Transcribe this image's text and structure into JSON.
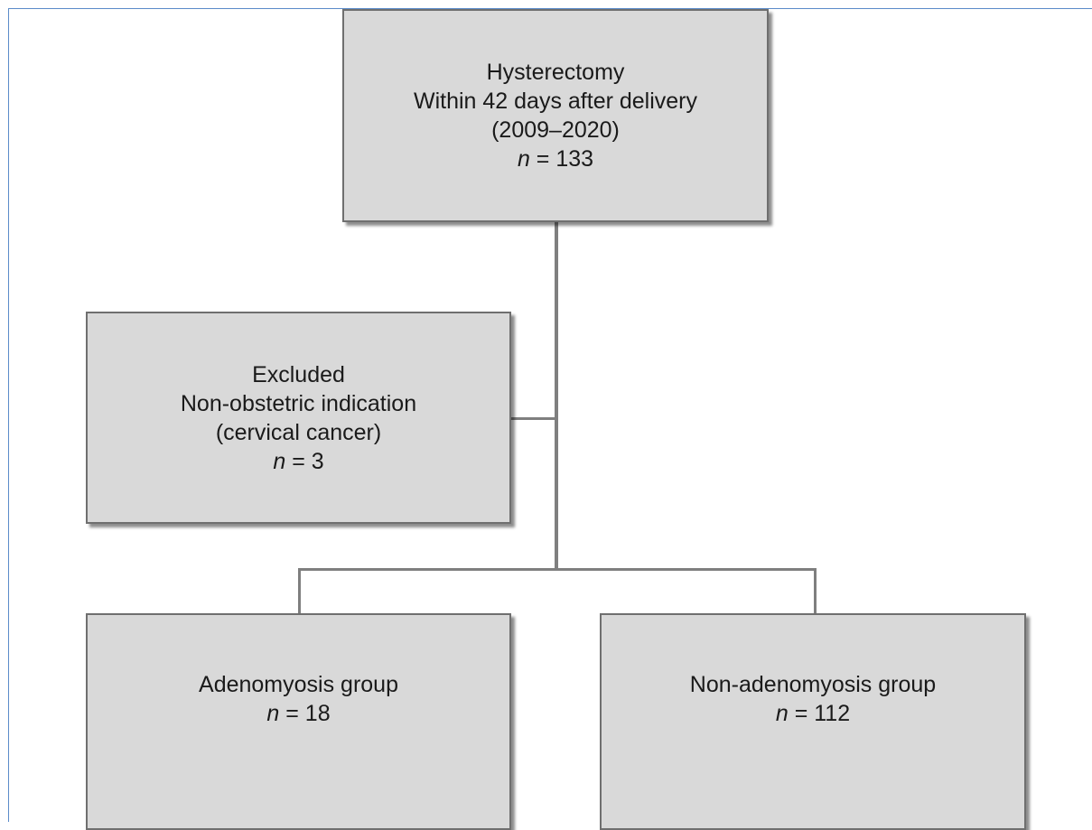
{
  "boxes": {
    "top": {
      "lines": [
        "Hysterectomy",
        "Within 42 days after delivery",
        "(2009–2020)"
      ],
      "n_label": "n",
      "n_value": " = 133"
    },
    "excluded": {
      "lines": [
        "Excluded",
        "Non-obstetric indication",
        "(cervical cancer)"
      ],
      "n_label": "n",
      "n_value": " = 3"
    },
    "adenomyosis": {
      "lines": [
        "Adenomyosis group"
      ],
      "n_label": "n",
      "n_value": " = 18"
    },
    "non_adenomyosis": {
      "lines": [
        "Non-adenomyosis group"
      ],
      "n_label": "n",
      "n_value": " = 112"
    }
  },
  "colors": {
    "box_fill": "#d9d9d9",
    "box_border": "#6f6f6f",
    "connector": "#7f7f7f",
    "frame": "#5b8bc9"
  }
}
